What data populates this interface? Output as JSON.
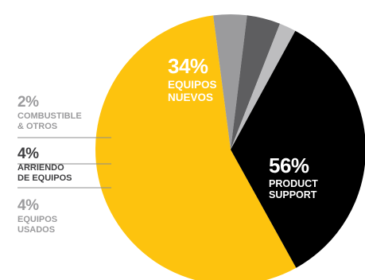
{
  "colors": {
    "product_support": "#FDC30E",
    "equipos_nuevos": "#000000",
    "combustible": "#BDBDBF",
    "arriendo": "#5E5E60",
    "usados": "#9B9B9D",
    "label_light": "#9B9B9D",
    "label_dark": "#3E3E40",
    "leader": "#8C8C8C"
  },
  "labels": {
    "nuevos_pct": "34%",
    "nuevos_text": "EQUIPOS\nNUEVOS",
    "support_pct": "56%",
    "support_text": "PRODUCT\nSUPPORT",
    "combustible_pct": "2%",
    "combustible_text": "COMBUSTIBLE\n& OTROS",
    "arriendo_pct": "4%",
    "arriendo_text": "ARRIENDO\nDE EQUIPOS",
    "usados_pct": "4%",
    "usados_text": "EQUIPOS\nUSADOS"
  },
  "chart_data": {
    "type": "pie",
    "slices": [
      {
        "key": "product_support",
        "label": "PRODUCT SUPPORT",
        "value": 56
      },
      {
        "key": "usados",
        "label": "EQUIPOS USADOS",
        "value": 4
      },
      {
        "key": "arriendo",
        "label": "ARRIENDO DE EQUIPOS",
        "value": 4
      },
      {
        "key": "combustible",
        "label": "COMBUSTIBLE & OTROS",
        "value": 2
      },
      {
        "key": "equipos_nuevos",
        "label": "EQUIPOS NUEVOS",
        "value": 34
      }
    ],
    "start_angle_deg": 61,
    "legend": "none"
  }
}
